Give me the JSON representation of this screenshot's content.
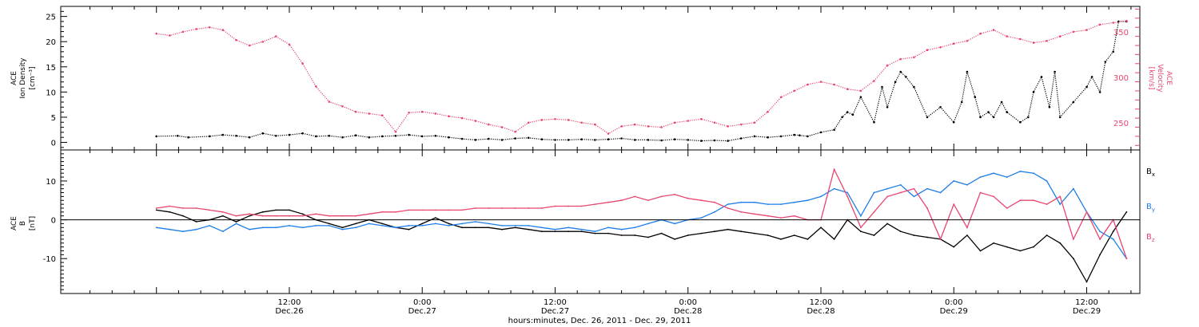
{
  "chart_data": [
    {
      "type": "scatter",
      "panel": "top",
      "ylabel_left": [
        "ACE",
        "Ion Density",
        "[cm⁻³]"
      ],
      "ylabel_right": [
        "ACE",
        "Velocity",
        "[km/s]"
      ],
      "ylim_left": [
        -1.5,
        27
      ],
      "ylim_right": [
        220,
        378
      ],
      "yticks_left": [
        0,
        5,
        10,
        15,
        20,
        25
      ],
      "yticks_right": [
        250,
        300,
        350
      ],
      "grid": false,
      "series": [
        {
          "axis": "left",
          "color": "#000000",
          "x": [
            0,
            0.08,
            0.12,
            0.2,
            0.25,
            0.3,
            0.35,
            0.4,
            0.45,
            0.5,
            0.55,
            0.6,
            0.65,
            0.7,
            0.75,
            0.8,
            0.85,
            0.9,
            0.95,
            1.0,
            1.05,
            1.1,
            1.15,
            1.2,
            1.25,
            1.3,
            1.35,
            1.4,
            1.45,
            1.5,
            1.55,
            1.6,
            1.65,
            1.7,
            1.75,
            1.8,
            1.85,
            1.9,
            1.95,
            2.0,
            2.05,
            2.1,
            2.15,
            2.2,
            2.25,
            2.3,
            2.35,
            2.4,
            2.42,
            2.45,
            2.5,
            2.55,
            2.58,
            2.6,
            2.62,
            2.65,
            2.7,
            2.73,
            2.75,
            2.78,
            2.8,
            2.82,
            2.85,
            2.9,
            2.95,
            3.0,
            3.03,
            3.05,
            3.08,
            3.1,
            3.13,
            3.15,
            3.18,
            3.2,
            3.25,
            3.28,
            3.3,
            3.33,
            3.36,
            3.38,
            3.4,
            3.45,
            3.5,
            3.52,
            3.55,
            3.57,
            3.6,
            3.62,
            3.65
          ],
          "y": [
            1.2,
            1.3,
            1.0,
            1.2,
            1.5,
            1.3,
            1.0,
            1.8,
            1.3,
            1.5,
            1.8,
            1.2,
            1.3,
            1.0,
            1.4,
            1.0,
            1.2,
            1.3,
            1.5,
            1.2,
            1.3,
            1.0,
            0.7,
            0.5,
            0.7,
            0.5,
            0.8,
            0.9,
            0.6,
            0.5,
            0.5,
            0.6,
            0.5,
            0.6,
            0.8,
            0.5,
            0.5,
            0.4,
            0.6,
            0.5,
            0.3,
            0.4,
            0.3,
            0.8,
            1.2,
            1.0,
            1.2,
            1.5,
            1.4,
            1.2,
            2.0,
            2.5,
            5.0,
            6.0,
            5.5,
            9.0,
            4.0,
            11.0,
            7.0,
            12.0,
            14.0,
            13.0,
            11.0,
            5.0,
            7.0,
            4.0,
            8.0,
            14.0,
            9.0,
            5.0,
            6.0,
            5.0,
            8.0,
            6.0,
            4.0,
            5.0,
            10.0,
            13.0,
            7.0,
            14.0,
            5.0,
            8.0,
            11.0,
            13.0,
            10.0,
            16.0,
            18.0,
            24.0,
            24.0
          ]
        },
        {
          "axis": "right",
          "color": "#e8466e",
          "x": [
            0,
            0.05,
            0.1,
            0.15,
            0.2,
            0.25,
            0.3,
            0.35,
            0.4,
            0.45,
            0.5,
            0.55,
            0.6,
            0.65,
            0.7,
            0.75,
            0.8,
            0.85,
            0.9,
            0.95,
            1.0,
            1.05,
            1.1,
            1.15,
            1.2,
            1.25,
            1.3,
            1.35,
            1.4,
            1.45,
            1.5,
            1.55,
            1.6,
            1.65,
            1.7,
            1.75,
            1.8,
            1.85,
            1.9,
            1.95,
            2.0,
            2.05,
            2.1,
            2.15,
            2.2,
            2.25,
            2.3,
            2.35,
            2.4,
            2.45,
            2.5,
            2.55,
            2.6,
            2.65,
            2.7,
            2.75,
            2.8,
            2.85,
            2.9,
            2.95,
            3.0,
            3.05,
            3.1,
            3.15,
            3.2,
            3.25,
            3.3,
            3.35,
            3.4,
            3.45,
            3.5,
            3.55,
            3.6,
            3.65
          ],
          "y": [
            348,
            346,
            350,
            353,
            355,
            352,
            341,
            335,
            339,
            345,
            336,
            315,
            290,
            273,
            268,
            262,
            260,
            258,
            240,
            261,
            262,
            260,
            257,
            255,
            252,
            248,
            245,
            240,
            250,
            253,
            254,
            253,
            250,
            248,
            238,
            246,
            248,
            246,
            245,
            250,
            252,
            254,
            250,
            246,
            248,
            250,
            262,
            278,
            285,
            292,
            295,
            292,
            287,
            285,
            296,
            313,
            320,
            322,
            330,
            333,
            337,
            340,
            348,
            352,
            345,
            342,
            338,
            340,
            345,
            350,
            352,
            358,
            360,
            362
          ]
        }
      ]
    },
    {
      "type": "line",
      "panel": "bottom",
      "ylabel": [
        "ACE",
        "B",
        "[nT]"
      ],
      "ylim": [
        -19,
        18
      ],
      "yticks": [
        -10,
        0,
        10
      ],
      "zero_line": true,
      "grid": false,
      "series": [
        {
          "name": "Bx",
          "color": "#000000",
          "x": [
            0,
            0.05,
            0.1,
            0.15,
            0.2,
            0.25,
            0.3,
            0.35,
            0.4,
            0.45,
            0.5,
            0.55,
            0.6,
            0.65,
            0.7,
            0.75,
            0.8,
            0.85,
            0.9,
            0.95,
            1.0,
            1.05,
            1.1,
            1.15,
            1.2,
            1.25,
            1.3,
            1.35,
            1.4,
            1.45,
            1.5,
            1.55,
            1.6,
            1.65,
            1.7,
            1.75,
            1.8,
            1.85,
            1.9,
            1.95,
            2.0,
            2.05,
            2.1,
            2.15,
            2.2,
            2.25,
            2.3,
            2.35,
            2.4,
            2.45,
            2.5,
            2.55,
            2.6,
            2.65,
            2.7,
            2.75,
            2.8,
            2.85,
            2.9,
            2.95,
            3.0,
            3.05,
            3.1,
            3.15,
            3.2,
            3.25,
            3.3,
            3.35,
            3.4,
            3.45,
            3.5,
            3.55,
            3.6,
            3.65
          ],
          "y": [
            2.5,
            2.0,
            1.0,
            -0.5,
            0.0,
            1.0,
            -0.5,
            1.0,
            2.0,
            2.5,
            2.5,
            1.5,
            0.0,
            -1.0,
            -2.0,
            -1.0,
            0.0,
            -1.0,
            -2.0,
            -2.5,
            -1.0,
            0.5,
            -1.0,
            -2.0,
            -2.0,
            -2.0,
            -2.5,
            -2.0,
            -2.5,
            -3.0,
            -3.0,
            -3.0,
            -3.0,
            -3.5,
            -3.5,
            -4.0,
            -4.0,
            -4.5,
            -3.5,
            -5.0,
            -4.0,
            -3.5,
            -3.0,
            -2.5,
            -3.0,
            -3.5,
            -4.0,
            -5.0,
            -4.0,
            -5.0,
            -2.0,
            -5.0,
            0.0,
            -3.0,
            -4.0,
            -1.0,
            -3.0,
            -4.0,
            -4.5,
            -5.0,
            -7.0,
            -4.0,
            -8.0,
            -6.0,
            -7.0,
            -8.0,
            -7.0,
            -4.0,
            -6.0,
            -10.0,
            -16.0,
            -9.0,
            -3.0,
            2.0
          ]
        },
        {
          "name": "By",
          "color": "#1e7ee8",
          "x": [
            0,
            0.05,
            0.1,
            0.15,
            0.2,
            0.25,
            0.3,
            0.35,
            0.4,
            0.45,
            0.5,
            0.55,
            0.6,
            0.65,
            0.7,
            0.75,
            0.8,
            0.85,
            0.9,
            0.95,
            1.0,
            1.05,
            1.1,
            1.15,
            1.2,
            1.25,
            1.3,
            1.35,
            1.4,
            1.45,
            1.5,
            1.55,
            1.6,
            1.65,
            1.7,
            1.75,
            1.8,
            1.85,
            1.9,
            1.95,
            2.0,
            2.05,
            2.1,
            2.15,
            2.2,
            2.25,
            2.3,
            2.35,
            2.4,
            2.45,
            2.5,
            2.55,
            2.6,
            2.65,
            2.7,
            2.75,
            2.8,
            2.85,
            2.9,
            2.95,
            3.0,
            3.05,
            3.1,
            3.15,
            3.2,
            3.25,
            3.3,
            3.35,
            3.4,
            3.45,
            3.5,
            3.55,
            3.6,
            3.65
          ],
          "y": [
            -2.0,
            -2.5,
            -3.0,
            -2.5,
            -1.5,
            -3.0,
            -1.0,
            -2.5,
            -2.0,
            -2.0,
            -1.5,
            -2.0,
            -1.5,
            -1.5,
            -2.5,
            -2.0,
            -1.0,
            -1.5,
            -2.0,
            -1.5,
            -1.5,
            -1.0,
            -1.5,
            -1.0,
            -0.5,
            -1.0,
            -1.5,
            -1.5,
            -1.5,
            -2.0,
            -2.5,
            -2.0,
            -2.5,
            -3.0,
            -2.0,
            -2.5,
            -2.0,
            -1.0,
            0.0,
            -1.0,
            0.0,
            0.5,
            2.0,
            4.0,
            4.5,
            4.5,
            4.0,
            4.0,
            4.5,
            5.0,
            6.0,
            8.0,
            7.0,
            1.0,
            7.0,
            8.0,
            9.0,
            6.0,
            8.0,
            7.0,
            10.0,
            9.0,
            11.0,
            12.0,
            11.0,
            12.5,
            12.0,
            10.0,
            4.0,
            8.0,
            2.0,
            -3.0,
            -5.0,
            -10.0
          ]
        },
        {
          "name": "Bz",
          "color": "#e8466e",
          "x": [
            0,
            0.05,
            0.1,
            0.15,
            0.2,
            0.25,
            0.3,
            0.35,
            0.4,
            0.45,
            0.5,
            0.55,
            0.6,
            0.65,
            0.7,
            0.75,
            0.8,
            0.85,
            0.9,
            0.95,
            1.0,
            1.05,
            1.1,
            1.15,
            1.2,
            1.25,
            1.3,
            1.35,
            1.4,
            1.45,
            1.5,
            1.55,
            1.6,
            1.65,
            1.7,
            1.75,
            1.8,
            1.85,
            1.9,
            1.95,
            2.0,
            2.05,
            2.1,
            2.15,
            2.2,
            2.25,
            2.3,
            2.35,
            2.4,
            2.45,
            2.5,
            2.55,
            2.6,
            2.65,
            2.7,
            2.75,
            2.8,
            2.85,
            2.9,
            2.95,
            3.0,
            3.05,
            3.1,
            3.15,
            3.2,
            3.25,
            3.3,
            3.35,
            3.4,
            3.45,
            3.5,
            3.55,
            3.6,
            3.65
          ],
          "y": [
            3.0,
            3.5,
            3.0,
            3.0,
            2.5,
            2.0,
            1.0,
            1.5,
            1.0,
            1.0,
            1.0,
            1.0,
            1.5,
            1.0,
            1.0,
            1.0,
            1.5,
            2.0,
            2.0,
            2.5,
            2.5,
            2.5,
            2.5,
            2.5,
            3.0,
            3.0,
            3.0,
            3.0,
            3.0,
            3.0,
            3.5,
            3.5,
            3.5,
            4.0,
            4.5,
            5.0,
            6.0,
            5.0,
            6.0,
            6.5,
            5.5,
            5.0,
            4.5,
            3.0,
            2.0,
            1.5,
            1.0,
            0.5,
            1.0,
            0.0,
            0.0,
            13.0,
            6.0,
            -2.0,
            2.0,
            6.0,
            7.0,
            8.0,
            3.0,
            -5.0,
            4.0,
            -2.0,
            7.0,
            6.0,
            3.0,
            5.0,
            5.0,
            4.0,
            6.0,
            -5.0,
            2.0,
            -5.0,
            0.0,
            -10.0
          ]
        }
      ],
      "legend": {
        "placement": "right",
        "entries": [
          {
            "base": "B",
            "sub": "x",
            "color": "#000000"
          },
          {
            "base": "B",
            "sub": "y",
            "color": "#1e7ee8"
          },
          {
            "base": "B",
            "sub": "z",
            "color": "#e8466e"
          }
        ]
      }
    }
  ],
  "x_axis": {
    "unit": "days since 00:00 Dec. 26, 2011",
    "xlim": [
      -0.36,
      3.7
    ],
    "ticks": [
      {
        "value": 0.5,
        "time": "12:00",
        "date": "Dec.26"
      },
      {
        "value": 1.0,
        "time": "0:00",
        "date": "Dec.27"
      },
      {
        "value": 1.5,
        "time": "12:00",
        "date": "Dec.27"
      },
      {
        "value": 2.0,
        "time": "0:00",
        "date": "Dec.28"
      },
      {
        "value": 2.5,
        "time": "12:00",
        "date": "Dec.28"
      },
      {
        "value": 3.0,
        "time": "0:00",
        "date": "Dec.29"
      },
      {
        "value": 3.5,
        "time": "12:00",
        "date": "Dec.29"
      }
    ],
    "label": "hours:minutes, Dec. 26, 2011 - Dec. 29, 2011"
  }
}
